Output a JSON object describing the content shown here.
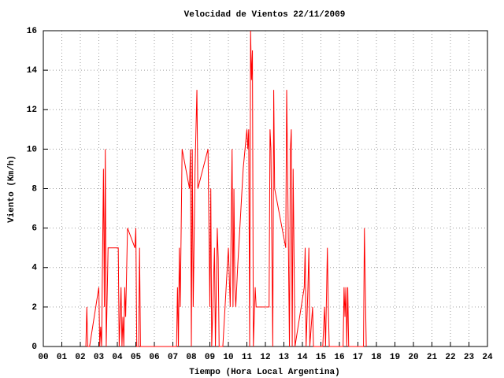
{
  "chart_data": {
    "type": "line",
    "title": "Velocidad de Vientos 22/11/2009",
    "xlabel": "Tiempo (Hora Local Argentina)",
    "ylabel": "Viento (Km/h)",
    "color": "#ff0000",
    "grid": true,
    "x": [
      2.3,
      2.35,
      2.4,
      2.5,
      3.0,
      3.05,
      3.1,
      3.15,
      3.25,
      3.3,
      3.35,
      3.4,
      3.5,
      4.05,
      4.1,
      4.2,
      4.25,
      4.3,
      4.35,
      4.4,
      4.45,
      4.55,
      4.95,
      5.0,
      5.05,
      5.15,
      5.2,
      5.25,
      7.2,
      7.25,
      7.3,
      7.35,
      7.4,
      7.5,
      7.9,
      7.95,
      8.0,
      8.05,
      8.1,
      8.2,
      8.3,
      8.35,
      8.9,
      9.0,
      9.05,
      9.1,
      9.25,
      9.3,
      9.4,
      9.45,
      9.5,
      9.7,
      10.0,
      10.1,
      10.2,
      10.25,
      10.3,
      10.35,
      10.4,
      10.5,
      10.8,
      11.0,
      11.05,
      11.1,
      11.15,
      11.2,
      11.25,
      11.3,
      11.35,
      11.45,
      11.5,
      12.2,
      12.25,
      12.3,
      12.4,
      12.45,
      12.5,
      13.1,
      13.15,
      13.2,
      13.3,
      13.35,
      13.4,
      13.45,
      13.5,
      13.6,
      14.1,
      14.15,
      14.2,
      14.3,
      14.35,
      14.4,
      14.55,
      14.6,
      15.1,
      15.2,
      15.25,
      15.35,
      15.4,
      15.45,
      16.2,
      16.25,
      16.3,
      16.35,
      16.4,
      16.45,
      16.5,
      17.3,
      17.35,
      17.4,
      17.45
    ],
    "values": [
      0,
      2,
      0,
      0,
      3,
      0,
      1,
      0,
      9,
      2,
      10,
      0,
      5,
      5,
      0,
      3,
      0,
      1.5,
      0,
      3,
      1.5,
      6,
      5,
      6,
      0,
      0,
      5,
      0,
      0,
      3,
      0,
      5,
      2,
      10,
      8,
      10,
      0,
      10,
      2,
      9,
      13,
      8,
      10,
      2,
      8,
      0,
      5,
      0,
      6,
      4.5,
      0,
      0,
      5,
      2,
      10,
      2,
      8,
      3,
      2,
      4,
      9,
      11,
      10,
      11,
      0,
      16,
      13.5,
      15,
      0,
      3,
      2,
      2,
      11,
      10,
      0,
      13,
      8,
      5,
      13,
      9,
      0,
      10,
      11,
      0,
      9,
      0,
      3,
      5,
      0,
      3,
      5,
      0,
      2,
      0,
      0,
      2,
      0,
      5,
      2,
      0,
      0,
      3,
      1.5,
      3,
      0,
      3,
      0,
      0,
      6,
      3,
      0
    ],
    "xlim": [
      0,
      24
    ],
    "xticks": [
      {
        "value": 0,
        "label": "00"
      },
      {
        "value": 1,
        "label": "01"
      },
      {
        "value": 2,
        "label": "02"
      },
      {
        "value": 3,
        "label": "03"
      },
      {
        "value": 4,
        "label": "04"
      },
      {
        "value": 5,
        "label": "05"
      },
      {
        "value": 6,
        "label": "06"
      },
      {
        "value": 7,
        "label": "07"
      },
      {
        "value": 8,
        "label": "08"
      },
      {
        "value": 9,
        "label": "09"
      },
      10,
      11,
      12,
      13,
      14,
      15,
      16,
      17,
      18,
      19,
      20,
      21,
      22,
      23,
      24
    ],
    "ylim": [
      0,
      16
    ],
    "yticks": [
      0,
      2,
      4,
      6,
      8,
      10,
      12,
      14,
      16
    ]
  }
}
